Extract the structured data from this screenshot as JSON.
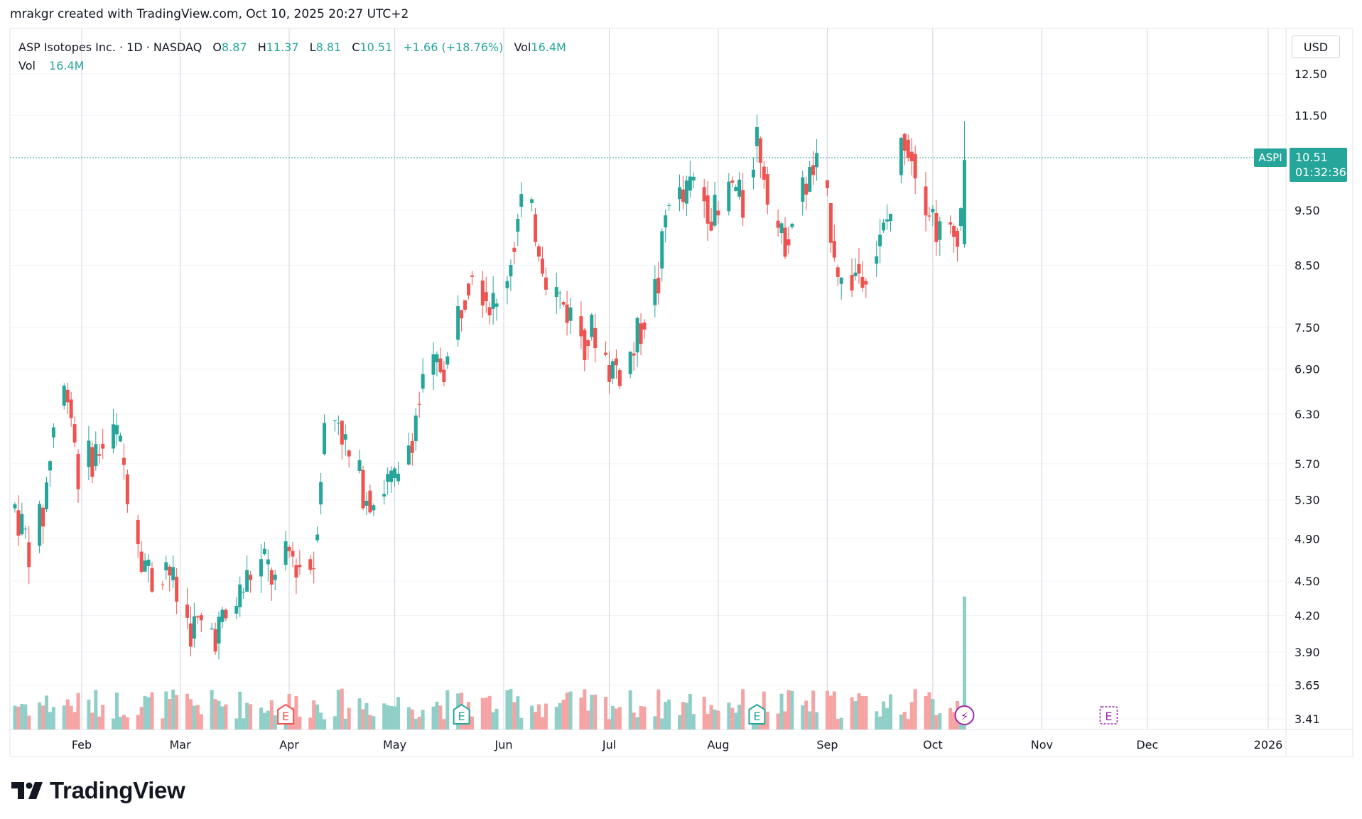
{
  "header": {
    "text": "mrakgr created with TradingView.com, Oct 10, 2025 20:27 UTC+2"
  },
  "legend": {
    "name": "ASP Isotopes Inc. · 1D · NASDAQ",
    "o_label": "O",
    "o": "8.87",
    "h_label": "H",
    "h": "11.37",
    "l_label": "L",
    "l": "8.81",
    "c_label": "C",
    "c": "10.51",
    "change": "+1.66 (+18.76%)",
    "vol_label": "Vol",
    "vol": "16.4M",
    "vol2_label": "Vol",
    "vol2": "16.4M"
  },
  "currency": "USD",
  "last_price": {
    "symbol": "ASPI",
    "price": "10.51",
    "countdown": "01:32:36"
  },
  "brand": "TradingView",
  "colors": {
    "up": "#26a69a",
    "down": "#ef5350",
    "vol_up": "#8fcfc8",
    "vol_down": "#f5a3a3",
    "event": "#9c27b0"
  },
  "events": [
    {
      "label": "E",
      "type": "earnings",
      "date": "2025-03-31"
    },
    {
      "label": "E",
      "type": "earnings",
      "date": "2025-05-20"
    },
    {
      "label": "E",
      "type": "earnings",
      "date": "2025-08-12"
    },
    {
      "label": "⚡",
      "type": "dividend-flash",
      "date": "2025-10-10"
    },
    {
      "label": "E",
      "type": "upcoming-earnings",
      "date": "2025-11-20"
    }
  ],
  "chart_data": {
    "type": "candlestick",
    "title": "ASP Isotopes Inc. · 1D · NASDAQ",
    "y_axis": {
      "scale": "log",
      "ticks": [
        "12.50",
        "11.50",
        "9.50",
        "8.50",
        "7.50",
        "6.90",
        "6.30",
        "5.70",
        "5.30",
        "4.90",
        "4.50",
        "4.20",
        "3.90",
        "3.65",
        "3.41"
      ]
    },
    "x_axis": {
      "ticks": [
        "Feb",
        "Mar",
        "Apr",
        "May",
        "Jun",
        "Jul",
        "Aug",
        "Sep",
        "Oct",
        "Nov",
        "Dec",
        "2026"
      ]
    },
    "ohlc_points": [
      [
        "2025-01-13",
        5.05,
        5.4
      ],
      [
        "2025-01-17",
        4.7,
        4.95
      ],
      [
        "2025-01-21",
        4.95,
        5.3
      ],
      [
        "2025-01-24",
        5.7,
        6.6
      ],
      [
        "2025-01-28",
        6.6,
        6.85
      ],
      [
        "2025-01-31",
        5.9,
        5.3
      ],
      [
        "2025-02-04",
        5.4,
        6.2
      ],
      [
        "2025-02-07",
        5.7,
        6.1
      ],
      [
        "2025-02-11",
        6.25,
        5.85
      ],
      [
        "2025-02-14",
        5.6,
        5.35
      ],
      [
        "2025-02-18",
        5.1,
        4.5
      ],
      [
        "2025-02-21",
        4.7,
        4.3
      ],
      [
        "2025-02-25",
        4.95,
        4.45
      ],
      [
        "2025-02-28",
        4.85,
        3.85
      ],
      [
        "2025-03-04",
        4.25,
        3.95
      ],
      [
        "2025-03-07",
        4.2,
        4.0
      ],
      [
        "2025-03-11",
        4.0,
        4.15
      ],
      [
        "2025-03-14",
        4.1,
        4.2
      ],
      [
        "2025-03-18",
        4.3,
        4.45
      ],
      [
        "2025-03-21",
        4.45,
        4.7
      ],
      [
        "2025-03-25",
        4.75,
        4.6
      ],
      [
        "2025-03-28",
        4.15,
        4.8
      ],
      [
        "2025-04-01",
        4.9,
        4.6
      ],
      [
        "2025-04-04",
        4.55,
        4.75
      ],
      [
        "2025-04-08",
        4.2,
        5.15
      ],
      [
        "2025-04-11",
        5.6,
        6.6
      ],
      [
        "2025-04-15",
        6.8,
        5.8
      ],
      [
        "2025-04-18",
        5.6,
        5.85
      ],
      [
        "2025-04-22",
        5.5,
        5.4
      ],
      [
        "2025-04-25",
        5.45,
        5.2
      ],
      [
        "2025-04-29",
        5.3,
        5.7
      ],
      [
        "2025-05-02",
        5.4,
        5.5
      ],
      [
        "2025-05-06",
        5.8,
        6.4
      ],
      [
        "2025-05-09",
        6.5,
        6.8
      ],
      [
        "2025-05-13",
        6.85,
        7.0
      ],
      [
        "2025-05-16",
        6.6,
        7.4
      ],
      [
        "2025-05-20",
        7.5,
        8.3
      ],
      [
        "2025-05-23",
        8.4,
        8.8
      ],
      [
        "2025-05-27",
        8.3,
        7.8
      ],
      [
        "2025-05-30",
        7.6,
        7.9
      ],
      [
        "2025-06-03",
        8.3,
        9.0
      ],
      [
        "2025-06-06",
        9.5,
        9.7
      ],
      [
        "2025-06-10",
        9.6,
        8.8
      ],
      [
        "2025-06-13",
        8.6,
        8.2
      ],
      [
        "2025-06-17",
        8.0,
        7.9
      ],
      [
        "2025-06-20",
        7.8,
        7.6
      ],
      [
        "2025-06-24",
        7.5,
        7.2
      ],
      [
        "2025-06-27",
        7.3,
        7.6
      ],
      [
        "2025-07-01",
        7.0,
        6.9
      ],
      [
        "2025-07-04",
        6.8,
        7.0
      ],
      [
        "2025-07-08",
        6.9,
        7.4
      ],
      [
        "2025-07-11",
        7.5,
        7.9
      ],
      [
        "2025-07-15",
        8.1,
        8.3
      ],
      [
        "2025-07-18",
        9.6,
        10.2
      ],
      [
        "2025-07-22",
        9.7,
        9.6
      ],
      [
        "2025-07-25",
        10.3,
        9.8
      ],
      [
        "2025-07-29",
        9.8,
        9.5
      ],
      [
        "2025-08-01",
        9.2,
        9.4
      ],
      [
        "2025-08-05",
        9.8,
        10.2
      ],
      [
        "2025-08-08",
        9.7,
        9.4
      ],
      [
        "2025-08-12",
        11.3,
        10.8
      ],
      [
        "2025-08-15",
        10.9,
        9.2
      ],
      [
        "2025-08-19",
        9.0,
        8.8
      ],
      [
        "2025-08-22",
        9.1,
        9.5
      ],
      [
        "2025-08-26",
        9.8,
        10.3
      ],
      [
        "2025-08-29",
        10.4,
        10.2
      ],
      [
        "2025-09-02",
        9.9,
        8.6
      ],
      [
        "2025-09-05",
        8.3,
        8.0
      ],
      [
        "2025-09-09",
        8.2,
        8.5
      ],
      [
        "2025-09-12",
        8.4,
        8.7
      ],
      [
        "2025-09-16",
        8.6,
        9.1
      ],
      [
        "2025-09-19",
        9.3,
        9.7
      ],
      [
        "2025-09-23",
        10.8,
        11.4
      ],
      [
        "2025-09-26",
        10.8,
        10.2
      ],
      [
        "2025-09-30",
        10.0,
        9.2
      ],
      [
        "2025-10-03",
        9.0,
        9.1
      ],
      [
        "2025-10-07",
        9.2,
        8.8
      ],
      [
        "2025-10-10",
        8.87,
        10.51
      ]
    ],
    "last_candle": {
      "date": "2025-10-10",
      "open": 8.87,
      "high": 11.37,
      "low": 8.81,
      "close": 10.51,
      "volume": "16.4M"
    }
  }
}
